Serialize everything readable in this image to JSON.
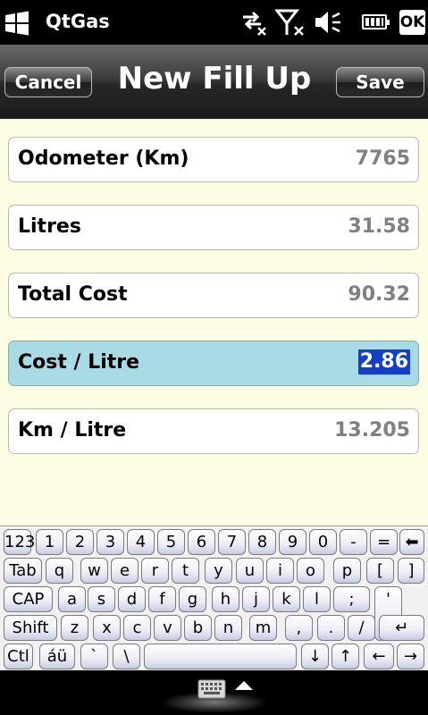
{
  "status": {
    "app_name": "QtGas",
    "ok_label": "OK",
    "icons": [
      "windows-logo-icon",
      "data-connection-icon",
      "signal-off-icon",
      "speaker-muted-icon",
      "battery-icon"
    ]
  },
  "header": {
    "title": "New Fill Up",
    "cancel_label": "Cancel",
    "save_label": "Save"
  },
  "fields": [
    {
      "label": "Odometer (Km)",
      "value": "7765"
    },
    {
      "label": "Litres",
      "value": "31.58"
    },
    {
      "label": "Total Cost",
      "value": "90.32"
    },
    {
      "label": "Cost / Litre",
      "value": "2.86",
      "focused": true
    },
    {
      "label": "Km / Litre",
      "value": "13.205"
    }
  ],
  "keyboard": {
    "rows": [
      [
        "123",
        "1",
        "2",
        "3",
        "4",
        "5",
        "6",
        "7",
        "8",
        "9",
        "0",
        "-",
        "=",
        "⬅"
      ],
      [
        "Tab",
        "q",
        "w",
        "e",
        "r",
        "t",
        "y",
        "u",
        "i",
        "o",
        "p",
        "[",
        "]"
      ],
      [
        "CAP",
        "a",
        "s",
        "d",
        "f",
        "g",
        "h",
        "j",
        "k",
        "l",
        ";",
        "'"
      ],
      [
        "Shift",
        "z",
        "x",
        "c",
        "v",
        "b",
        "n",
        "m",
        ",",
        ".",
        "/",
        "↵"
      ],
      [
        "Ctl",
        "áü",
        "`",
        "\\",
        "",
        "↓",
        "↑",
        "←",
        "→"
      ]
    ]
  },
  "bottom": {
    "icons": [
      "keyboard-icon",
      "up-arrow-icon"
    ]
  }
}
